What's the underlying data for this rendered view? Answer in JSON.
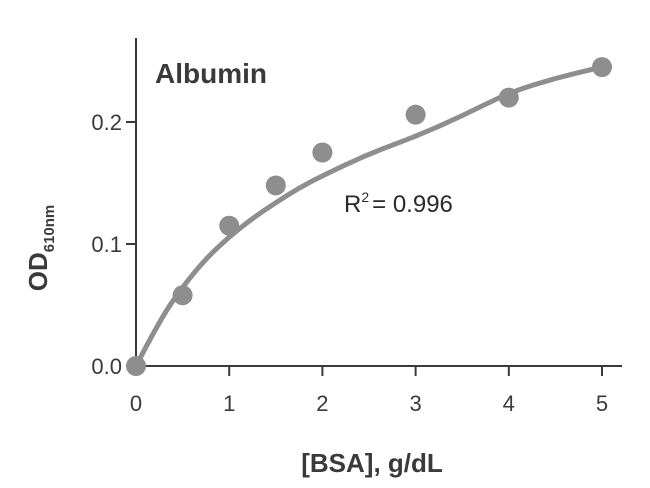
{
  "chart_data": {
    "type": "scatter",
    "title": "Albumin",
    "xlabel": "[BSA], g/dL",
    "ylabel_main": "OD",
    "ylabel_sub": "610nm",
    "xlim": [
      0,
      5
    ],
    "ylim": [
      0,
      0.25
    ],
    "x_ticks": [
      "0",
      "1",
      "2",
      "3",
      "4",
      "5"
    ],
    "y_ticks": [
      "0.0",
      "0.1",
      "0.2"
    ],
    "x_tick_values": [
      0,
      1,
      2,
      3,
      4,
      5
    ],
    "y_tick_values": [
      0.0,
      0.1,
      0.2
    ],
    "points": {
      "x": [
        0,
        0.5,
        1,
        1.5,
        2,
        3,
        4,
        5
      ],
      "y": [
        0.0,
        0.058,
        0.115,
        0.148,
        0.175,
        0.206,
        0.22,
        0.245
      ]
    },
    "fit_curve": {
      "x": [
        0,
        0.25,
        0.5,
        0.75,
        1,
        1.25,
        1.5,
        1.75,
        2,
        2.5,
        3,
        3.5,
        4,
        4.5,
        5
      ],
      "y": [
        0.0,
        0.037,
        0.065,
        0.088,
        0.106,
        0.121,
        0.134,
        0.146,
        0.156,
        0.174,
        0.188,
        0.205,
        0.224,
        0.236,
        0.245
      ]
    },
    "annotation": {
      "r_label": "R",
      "r_exp": "2",
      "r_value": "= 0.996"
    },
    "grid": false,
    "colors": {
      "series": "#8e8e8e",
      "axis": "#3a3a3a"
    }
  }
}
